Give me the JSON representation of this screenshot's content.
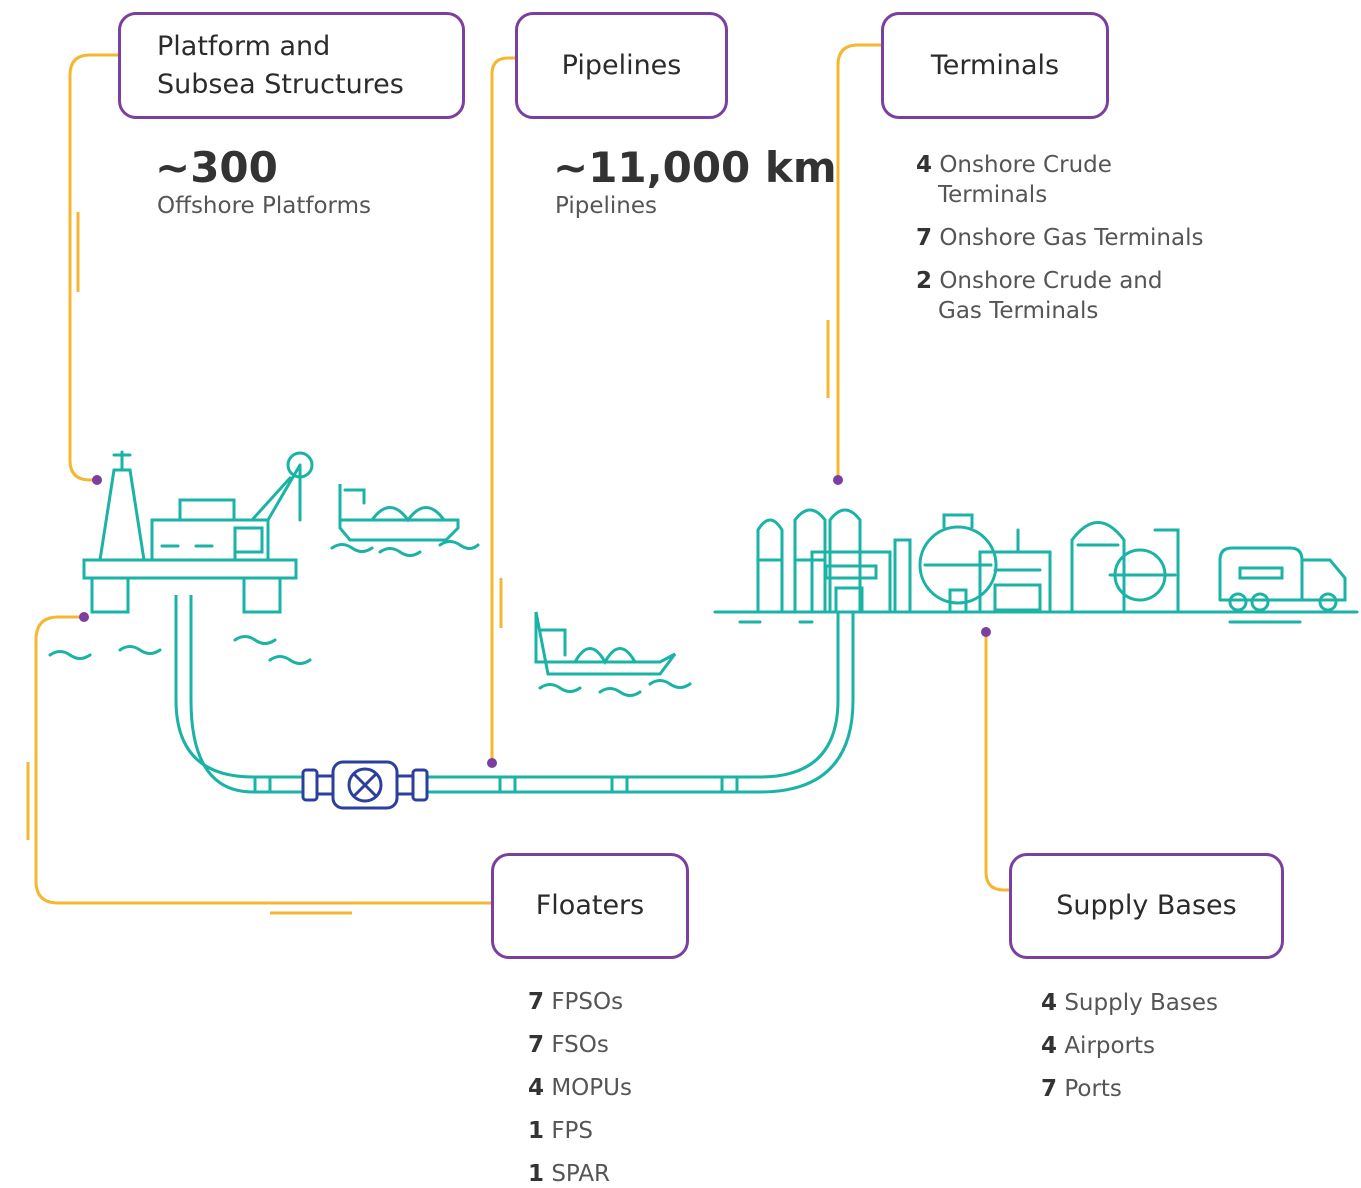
{
  "sections": {
    "platforms": {
      "title": "Platform and Subsea Structures",
      "stat": "~300",
      "stat_label": "Offshore Platforms"
    },
    "pipelines": {
      "title": "Pipelines",
      "stat": "~11,000 km",
      "stat_label": "Pipelines"
    },
    "terminals": {
      "title": "Terminals",
      "items": [
        {
          "count": 4,
          "label": "Onshore Crude Terminals"
        },
        {
          "count": 7,
          "label": "Onshore Gas Terminals"
        },
        {
          "count": 2,
          "label": "Onshore Crude and Gas Terminals"
        }
      ]
    },
    "floaters": {
      "title": "Floaters",
      "items": [
        {
          "count": 7,
          "label": "FPSOs"
        },
        {
          "count": 7,
          "label": "FSOs"
        },
        {
          "count": 4,
          "label": "MOPUs"
        },
        {
          "count": 1,
          "label": "FPS"
        },
        {
          "count": 1,
          "label": "SPAR"
        }
      ]
    },
    "supply": {
      "title": "Supply Bases",
      "items": [
        {
          "count": 4,
          "label": "Supply Bases"
        },
        {
          "count": 4,
          "label": "Airports"
        },
        {
          "count": 7,
          "label": "Ports"
        }
      ]
    }
  }
}
